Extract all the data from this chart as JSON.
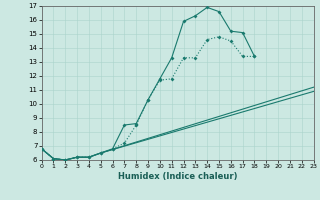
{
  "xlabel": "Humidex (Indice chaleur)",
  "bg_color": "#cce8e2",
  "grid_color": "#aad4cc",
  "line_color": "#1a7a6e",
  "xlim": [
    0,
    23
  ],
  "ylim": [
    6,
    17
  ],
  "xticks": [
    0,
    1,
    2,
    3,
    4,
    5,
    6,
    7,
    8,
    9,
    10,
    11,
    12,
    13,
    14,
    15,
    16,
    17,
    18,
    19,
    20,
    21,
    22,
    23
  ],
  "yticks": [
    6,
    7,
    8,
    9,
    10,
    11,
    12,
    13,
    14,
    15,
    16,
    17
  ],
  "series": [
    {
      "x": [
        0,
        1,
        2,
        3,
        4,
        5,
        6,
        7,
        8,
        9,
        10,
        11,
        12,
        13,
        14,
        15,
        16,
        17,
        18
      ],
      "y": [
        6.8,
        6.1,
        6.0,
        6.2,
        6.2,
        6.5,
        6.8,
        8.5,
        8.6,
        10.3,
        11.8,
        13.3,
        15.9,
        16.3,
        16.9,
        16.6,
        15.2,
        15.1,
        13.4
      ]
    },
    {
      "x": [
        0,
        1,
        2,
        3,
        4,
        5,
        6,
        7,
        8,
        9,
        10,
        11,
        12,
        13,
        14,
        15,
        16,
        17,
        18
      ],
      "y": [
        6.8,
        6.1,
        6.0,
        6.2,
        6.2,
        6.5,
        6.8,
        7.2,
        8.5,
        10.3,
        11.7,
        11.8,
        13.3,
        13.3,
        14.6,
        14.8,
        14.5,
        13.4,
        13.4
      ]
    },
    {
      "x": [
        0,
        1,
        2,
        3,
        4,
        5,
        23
      ],
      "y": [
        6.8,
        6.1,
        6.0,
        6.2,
        6.2,
        6.5,
        11.2
      ]
    },
    {
      "x": [
        0,
        1,
        2,
        3,
        4,
        5,
        23
      ],
      "y": [
        6.8,
        6.1,
        6.0,
        6.2,
        6.2,
        6.5,
        10.9
      ]
    }
  ]
}
